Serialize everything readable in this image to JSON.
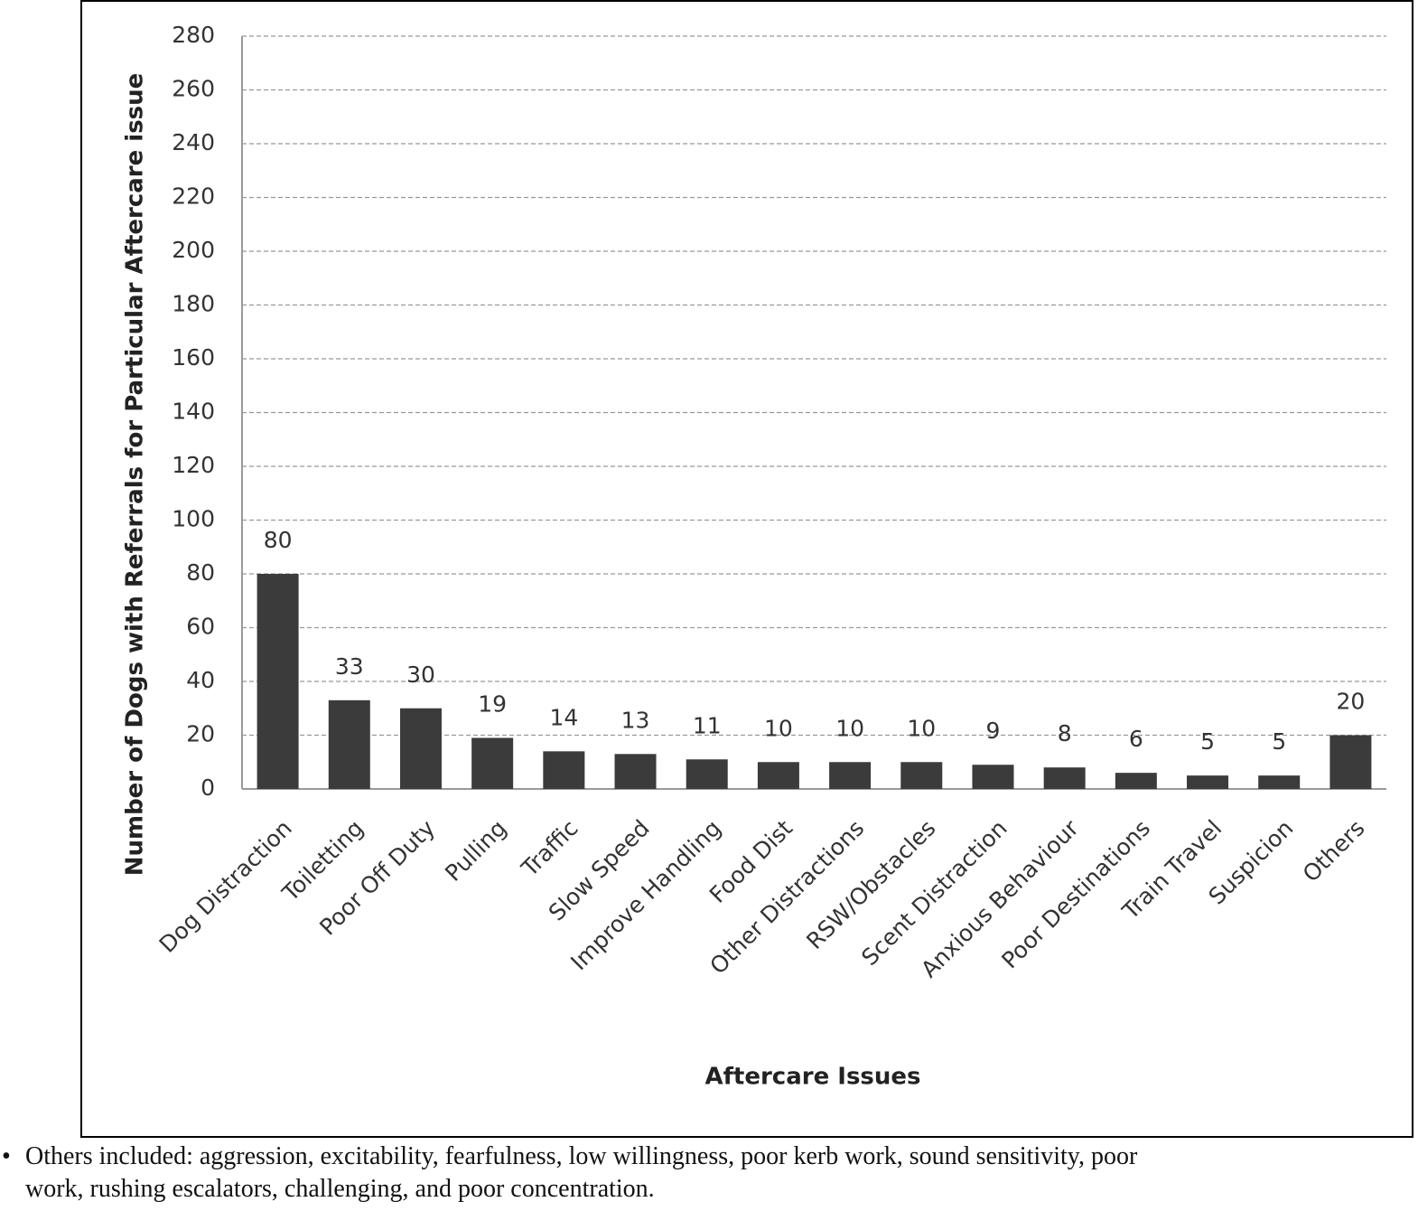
{
  "chart_data": {
    "type": "bar",
    "y_label": "Number  of Dogs  with Referrals for Particular Aftercare issue",
    "x_label": "Aftercare Issues",
    "categories": [
      "Dog Distraction",
      "Toiletting",
      "Poor Off Duty",
      "Pulling",
      "Traffic",
      "Slow Speed",
      "Improve Handling",
      "Food Dist",
      "Other Distractions",
      "RSW/Obstacles",
      "Scent Distraction",
      "Anxious Behaviour",
      "Poor Destinations",
      "Train Travel",
      "Suspicion",
      "Others"
    ],
    "values": [
      80,
      33,
      30,
      19,
      14,
      13,
      11,
      10,
      10,
      10,
      9,
      8,
      6,
      5,
      5,
      20
    ],
    "color": "#3b3b3b",
    "ylim": [
      0,
      280
    ],
    "yticks": [
      0,
      20,
      40,
      60,
      80,
      100,
      120,
      140,
      160,
      180,
      200,
      220,
      240,
      260,
      280
    ],
    "grid": true
  },
  "footnote": "Others included: aggression, excitability, fearfulness, low willingness, poor kerb work, sound sensitivity, poor work, rushing escalators, challenging, and poor concentration."
}
